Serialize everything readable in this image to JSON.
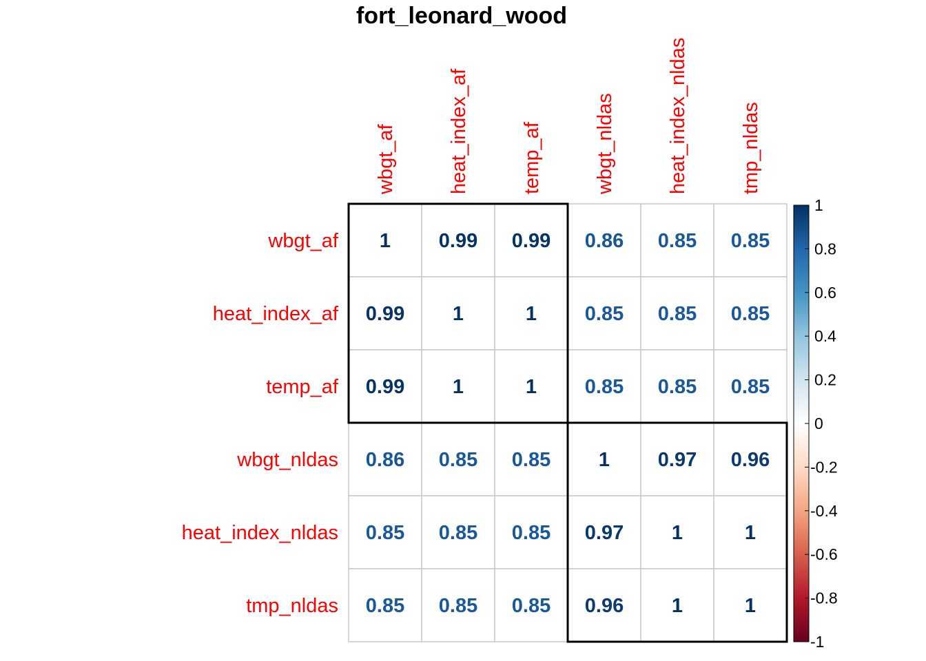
{
  "chart_data": {
    "type": "heatmap",
    "title": "fort_leonard_wood",
    "row_labels": [
      "wbgt_af",
      "heat_index_af",
      "temp_af",
      "wbgt_nldas",
      "heat_index_nldas",
      "tmp_nldas"
    ],
    "col_labels": [
      "wbgt_af",
      "heat_index_af",
      "temp_af",
      "wbgt_nldas",
      "heat_index_nldas",
      "tmp_nldas"
    ],
    "values": [
      [
        1,
        0.99,
        0.99,
        0.86,
        0.85,
        0.85
      ],
      [
        0.99,
        1,
        1,
        0.85,
        0.85,
        0.85
      ],
      [
        0.99,
        1,
        1,
        0.85,
        0.85,
        0.85
      ],
      [
        0.86,
        0.85,
        0.85,
        1,
        0.97,
        0.96
      ],
      [
        0.85,
        0.85,
        0.85,
        0.97,
        1,
        1
      ],
      [
        0.85,
        0.85,
        0.85,
        0.96,
        1,
        1
      ]
    ],
    "value_labels": [
      [
        "1",
        "0.99",
        "0.99",
        "0.86",
        "0.85",
        "0.85"
      ],
      [
        "0.99",
        "1",
        "1",
        "0.85",
        "0.85",
        "0.85"
      ],
      [
        "0.99",
        "1",
        "1",
        "0.85",
        "0.85",
        "0.85"
      ],
      [
        "0.86",
        "0.85",
        "0.85",
        "1",
        "0.97",
        "0.96"
      ],
      [
        "0.85",
        "0.85",
        "0.85",
        "0.97",
        "1",
        "1"
      ],
      [
        "0.85",
        "0.85",
        "0.85",
        "0.96",
        "1",
        "1"
      ]
    ],
    "clusters": [
      {
        "rows": [
          0,
          2
        ],
        "cols": [
          0,
          2
        ]
      },
      {
        "rows": [
          3,
          5
        ],
        "cols": [
          3,
          5
        ]
      }
    ],
    "colorbar": {
      "range": [
        -1,
        1
      ],
      "tick_labels": [
        "1",
        "0.8",
        "0.6",
        "0.4",
        "0.2",
        "0",
        "-0.2",
        "-0.4",
        "-0.6",
        "-0.8",
        "-1"
      ],
      "colors": [
        "#67001f",
        "#b2182b",
        "#d6604d",
        "#f4a582",
        "#fddbc7",
        "#ffffff",
        "#d1e5f0",
        "#92c5de",
        "#4393c3",
        "#2166ac",
        "#053061"
      ]
    },
    "label_color": "#ff0000",
    "grid": true
  }
}
